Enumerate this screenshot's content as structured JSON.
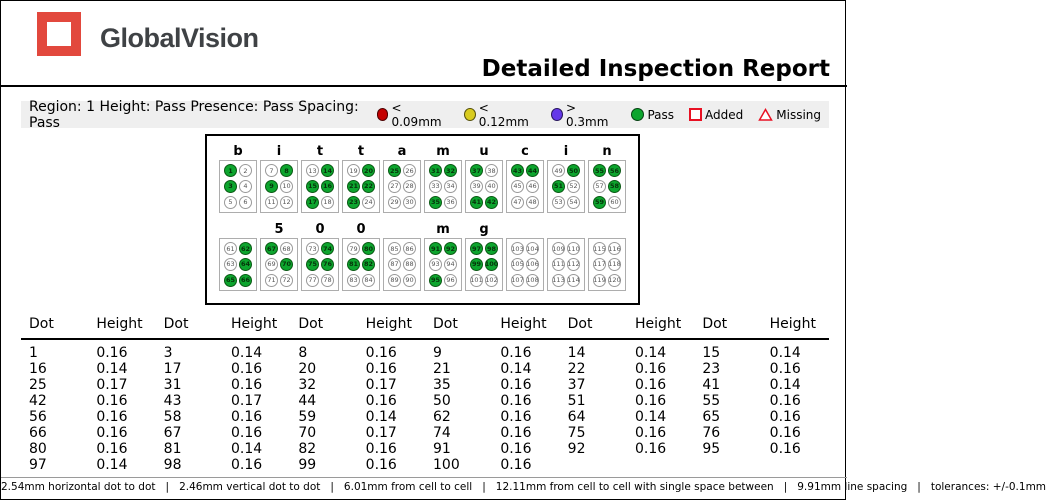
{
  "header": {
    "brand": "GlobalVision",
    "title": "Detailed Inspection Report",
    "logo_color": "#E2483D"
  },
  "region_bar": {
    "text": "Region: 1 Height: Pass Presence: Pass Spacing: Pass",
    "legend": [
      {
        "shape": "circle",
        "color": "#C40000",
        "label": "< 0.09mm"
      },
      {
        "shape": "circle",
        "color": "#D9CC1F",
        "label": "< 0.12mm"
      },
      {
        "shape": "circle",
        "color": "#6438E8",
        "label": "> 0.3mm"
      },
      {
        "shape": "circle",
        "color": "#0DA52E",
        "label": "Pass"
      },
      {
        "shape": "square-outline",
        "color": "#E81123",
        "label": "Added"
      },
      {
        "shape": "triangle-outline",
        "color": "#E81123",
        "label": "Missing"
      }
    ]
  },
  "braille": {
    "pass_color": "#0DA52E",
    "rows": [
      {
        "cells": [
          {
            "label": "b",
            "start": 1,
            "raised": [
              1,
              3
            ]
          },
          {
            "label": "i",
            "start": 7,
            "raised": [
              2,
              3
            ]
          },
          {
            "label": "t",
            "start": 13,
            "raised": [
              2,
              3,
              4,
              5
            ]
          },
          {
            "label": "t",
            "start": 19,
            "raised": [
              2,
              3,
              4,
              5
            ]
          },
          {
            "label": "a",
            "start": 25,
            "raised": [
              1
            ]
          },
          {
            "label": "m",
            "start": 31,
            "raised": [
              1,
              2,
              5
            ]
          },
          {
            "label": "u",
            "start": 37,
            "raised": [
              1,
              5,
              6
            ]
          },
          {
            "label": "c",
            "start": 43,
            "raised": [
              1,
              2
            ]
          },
          {
            "label": "i",
            "start": 49,
            "raised": [
              2,
              3
            ]
          },
          {
            "label": "n",
            "start": 55,
            "raised": [
              1,
              2,
              4,
              5
            ]
          }
        ]
      },
      {
        "cells": [
          {
            "label": "",
            "start": 61,
            "raised": [
              2,
              4,
              5,
              6
            ]
          },
          {
            "label": "5",
            "start": 67,
            "raised": [
              1,
              4
            ]
          },
          {
            "label": "0",
            "start": 73,
            "raised": [
              2,
              3,
              4
            ]
          },
          {
            "label": "0",
            "start": 79,
            "raised": [
              2,
              3,
              4
            ]
          },
          {
            "label": "",
            "start": 85,
            "raised": []
          },
          {
            "label": "m",
            "start": 91,
            "raised": [
              1,
              2,
              5
            ]
          },
          {
            "label": "g",
            "start": 97,
            "raised": [
              1,
              2,
              3,
              4
            ]
          },
          {
            "label": "",
            "start": 103,
            "raised": []
          },
          {
            "label": "",
            "start": 109,
            "raised": []
          },
          {
            "label": "",
            "start": 115,
            "raised": []
          }
        ]
      }
    ]
  },
  "table": {
    "headers": [
      "Dot",
      "Height",
      "Dot",
      "Height",
      "Dot",
      "Height",
      "Dot",
      "Height",
      "Dot",
      "Height",
      "Dot",
      "Height"
    ],
    "rows": [
      [
        "1",
        "0.16",
        "3",
        "0.14",
        "8",
        "0.16",
        "9",
        "0.16",
        "14",
        "0.14",
        "15",
        "0.14"
      ],
      [
        "16",
        "0.14",
        "17",
        "0.16",
        "20",
        "0.16",
        "21",
        "0.14",
        "22",
        "0.16",
        "23",
        "0.16"
      ],
      [
        "25",
        "0.17",
        "31",
        "0.16",
        "32",
        "0.17",
        "35",
        "0.16",
        "37",
        "0.16",
        "41",
        "0.14"
      ],
      [
        "42",
        "0.16",
        "43",
        "0.17",
        "44",
        "0.16",
        "50",
        "0.16",
        "51",
        "0.16",
        "55",
        "0.16"
      ],
      [
        "56",
        "0.16",
        "58",
        "0.16",
        "59",
        "0.14",
        "62",
        "0.16",
        "64",
        "0.14",
        "65",
        "0.16"
      ],
      [
        "66",
        "0.16",
        "67",
        "0.16",
        "70",
        "0.17",
        "74",
        "0.16",
        "75",
        "0.16",
        "76",
        "0.16"
      ],
      [
        "80",
        "0.16",
        "81",
        "0.14",
        "82",
        "0.16",
        "91",
        "0.16",
        "92",
        "0.16",
        "95",
        "0.16"
      ],
      [
        "97",
        "0.14",
        "98",
        "0.16",
        "99",
        "0.16",
        "100",
        "0.16"
      ]
    ]
  },
  "footer": {
    "text": "2.54mm horizontal dot to dot   |   2.46mm vertical dot to dot   |   6.01mm from cell to cell   |   12.11mm from cell to cell with single space between   |   9.91mm line spacing   |   tolerances: +/-0.1mm"
  }
}
